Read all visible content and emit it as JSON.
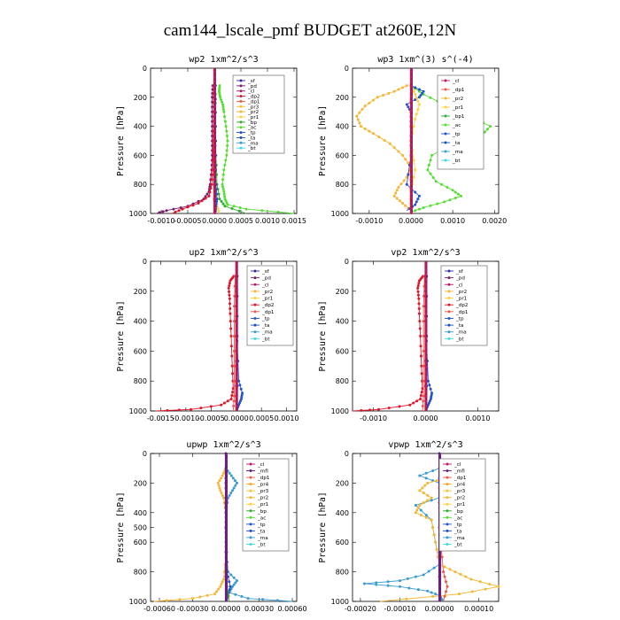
{
  "title": "cam144_lscale_pmf  BUDGET at260E,12N",
  "colors": {
    "sf": "#2e2ea8",
    "pd": "#7a1f6e",
    "cl": "#c2186b",
    "dp2": "#e0142a",
    "dp1": "#e85a4a",
    "pr3": "#f3c33c",
    "pr2": "#f4b733",
    "pr1": "#ffd23f",
    "bp": "#2eaa2e",
    "ac": "#55dd33",
    "tp": "#2255cc",
    "ta": "#1a4fb8",
    "ma": "#3a9bd0",
    "bt": "#40d8e8",
    "mfl": "#6a1b8a",
    "dp4": "#d0246a",
    "pr4": "#ffa020"
  },
  "chart_data": [
    {
      "type": "line",
      "title": "wp2   1xm^2/s^3",
      "ylabel": "Pressure [hPa]",
      "xlim": [
        -0.0012,
        0.00155
      ],
      "ylim": [
        1000,
        0
      ],
      "xticks": [
        -0.001,
        -0.0005,
        0.0,
        0.0005,
        0.001,
        0.0015
      ],
      "xtick_labels": [
        "-0.0010",
        "-0.0005",
        "0.0000",
        "0.0005",
        "0.0010",
        "0.0015"
      ],
      "yticks": [
        0,
        200,
        400,
        600,
        800,
        1000
      ],
      "legend": [
        "_sf",
        "_pd",
        "_cl",
        "_dp2",
        "_dp1",
        "_pr3",
        "_pr2",
        "_pr1",
        "_bp",
        "_ac",
        "_tp",
        "_ta",
        "_ma",
        "_bt"
      ],
      "series": [
        {
          "key": "pd",
          "y": [
            120,
            200,
            300,
            400,
            500,
            600,
            700,
            800,
            850,
            900,
            950,
            980,
            1000
          ],
          "x": [
            -3e-05,
            -4e-05,
            -4e-05,
            -4e-05,
            -4e-05,
            -4e-05,
            -5e-05,
            -8e-05,
            -0.0001,
            -0.0002,
            -0.0005,
            -0.0009,
            -0.0011
          ]
        },
        {
          "key": "dp2",
          "y": [
            120,
            300,
            500,
            700,
            800,
            880,
            930,
            970,
            1000
          ],
          "x": [
            0.0,
            -1e-05,
            -2e-05,
            -3e-05,
            -5e-05,
            -0.0001,
            -0.0003,
            -0.0006,
            -0.0008
          ]
        },
        {
          "key": "ac",
          "y": [
            120,
            160,
            200,
            250,
            300,
            400,
            500,
            600,
            700,
            800,
            850,
            900,
            940,
            970,
            1000
          ],
          "x": [
            0.0001,
            9e-05,
            0.00011,
            0.00016,
            0.00018,
            0.00022,
            0.00025,
            0.00023,
            0.00018,
            0.00015,
            0.00018,
            0.0002,
            0.00025,
            0.0006,
            0.0015
          ]
        },
        {
          "key": "bp",
          "y": [
            120,
            300,
            600,
            800,
            900,
            950,
            1000
          ],
          "x": [
            2e-05,
            2e-05,
            3e-05,
            5e-05,
            0.0001,
            0.0002,
            0.0006
          ]
        },
        {
          "key": "pr1",
          "y": [
            120,
            400,
            700,
            850,
            950,
            1000
          ],
          "x": [
            0.0,
            1e-05,
            1e-05,
            3e-05,
            5e-05,
            0.0001
          ]
        },
        {
          "key": "tp",
          "y": [
            120,
            400,
            800,
            900,
            950,
            1000
          ],
          "x": [
            0.0,
            1e-05,
            3e-05,
            5e-05,
            3e-05,
            2e-05
          ]
        },
        {
          "key": "bt",
          "y": [
            120,
            500,
            1000
          ],
          "x": [
            0.0,
            0.0,
            1e-05
          ]
        },
        {
          "key": "cl",
          "y": [
            120,
            400,
            700,
            1000
          ],
          "x": [
            0.0,
            0.0,
            0.0,
            0.0
          ]
        },
        {
          "key": "sf",
          "y": [
            120,
            400,
            700,
            1000
          ],
          "x": [
            2e-05,
            2e-05,
            2e-05,
            2e-05
          ]
        }
      ]
    },
    {
      "type": "line",
      "title": "wp3   1xm^(3) s^(-4)",
      "ylabel": "Pressure [hPa]",
      "xlim": [
        -0.0014,
        0.0021
      ],
      "ylim": [
        1000,
        0
      ],
      "xticks": [
        -0.001,
        0.0,
        0.001,
        0.002
      ],
      "xtick_labels": [
        "-0.0010",
        "0.0000",
        "0.0010",
        "0.0020"
      ],
      "yticks": [
        0,
        200,
        400,
        600,
        800,
        1000
      ],
      "legend": [
        "_cl",
        "_dp1",
        "_pr2",
        "_pr1",
        "_bp1",
        "_ac",
        "_tp",
        "_ta",
        "_ma",
        "_bt"
      ],
      "series": [
        {
          "key": "pr2",
          "y": [
            120,
            160,
            200,
            260,
            330,
            400,
            450,
            520,
            600,
            680,
            750,
            820,
            880,
            930,
            980
          ],
          "x": [
            -0.0001,
            -0.0004,
            -0.0008,
            -0.0011,
            -0.0013,
            -0.0012,
            -0.0009,
            -0.0005,
            -0.0002,
            0.0,
            -0.0001,
            -0.0003,
            -0.0004,
            -0.0002,
            0.0
          ]
        },
        {
          "key": "ac",
          "y": [
            120,
            180,
            250,
            330,
            400,
            460,
            520,
            600,
            700,
            780,
            840,
            880,
            920,
            960,
            990
          ],
          "x": [
            0.0,
            0.0003,
            0.0008,
            0.0014,
            0.0019,
            0.0017,
            0.001,
            0.0005,
            0.0004,
            0.0006,
            0.001,
            0.0012,
            0.0008,
            0.0003,
            0.0
          ]
        },
        {
          "key": "tp",
          "y": [
            120,
            160,
            200,
            250,
            300,
            400,
            600,
            800,
            880,
            940,
            980
          ],
          "x": [
            0.0,
            0.0003,
            0.0002,
            -0.0001,
            0.0,
            0.0,
            0.0,
            -0.0001,
            0.0002,
            0.0001,
            -0.0001
          ]
        },
        {
          "key": "pr1",
          "y": [
            120,
            180,
            250,
            350,
            500,
            700,
            850,
            950
          ],
          "x": [
            0.0,
            0.0001,
            0.0002,
            0.0001,
            0.0,
            0.0001,
            0.0,
            0.0
          ]
        },
        {
          "key": "dp1",
          "y": [
            120,
            400,
            700,
            900,
            1000
          ],
          "x": [
            0.0,
            0.0,
            0.0,
            0.0,
            0.0
          ]
        }
      ]
    },
    {
      "type": "line",
      "title": "up2   1xm^2/s^3",
      "ylabel": "Pressure [hPa]",
      "xlim": [
        -0.0017,
        0.0012
      ],
      "ylim": [
        1000,
        0
      ],
      "xticks": [
        -0.0015,
        -0.001,
        -0.0005,
        0.0,
        0.0005,
        0.001
      ],
      "xtick_labels": [
        "-0.0015",
        "-0.0010",
        "-0.0005",
        "0.0000",
        "0.0005",
        "0.0010"
      ],
      "yticks": [
        0,
        200,
        400,
        600,
        800,
        1000
      ],
      "legend": [
        "_sf",
        "_pd",
        "_cl",
        "_pr2",
        "_pr1",
        "_dp2",
        "_dp1",
        "_tp",
        "_ta",
        "_ma",
        "_bt"
      ],
      "series": [
        {
          "key": "dp2",
          "y": [
            100,
            130,
            180,
            250,
            350,
            500,
            700,
            850,
            920,
            960,
            990,
            1000
          ],
          "x": [
            -5e-05,
            -0.00012,
            -0.00015,
            -0.00013,
            -0.00012,
            -0.0001,
            -8e-05,
            -6e-05,
            -0.0001,
            -0.0003,
            -0.0009,
            -0.0016
          ]
        },
        {
          "key": "dp1",
          "y": [
            100,
            300,
            600,
            900,
            1000
          ],
          "x": [
            -2e-05,
            -4e-05,
            -4e-05,
            -4e-05,
            -6e-05
          ]
        },
        {
          "key": "tp",
          "y": [
            100,
            400,
            800,
            880,
            920,
            960,
            1000
          ],
          "x": [
            0.0,
            0.0,
            5e-05,
            0.00012,
            0.0001,
            5e-05,
            0.0
          ]
        },
        {
          "key": "pd",
          "y": [
            100,
            500,
            1000
          ],
          "x": [
            0.0,
            0.0,
            0.0
          ]
        },
        {
          "key": "sf",
          "y": [
            100,
            500,
            1000
          ],
          "x": [
            2e-05,
            2e-05,
            2e-05
          ]
        }
      ]
    },
    {
      "type": "line",
      "title": "vp2   1xm^2/s^3",
      "ylabel": "Pressure [hPa]",
      "xlim": [
        -0.0014,
        0.0014
      ],
      "ylim": [
        1000,
        0
      ],
      "xticks": [
        -0.001,
        0.0,
        0.001
      ],
      "xtick_labels": [
        "-0.0010",
        "0.0000",
        "0.0010"
      ],
      "yticks": [
        0,
        200,
        400,
        600,
        800,
        1000
      ],
      "legend": [
        "_sf",
        "_pd",
        "_cl",
        "_pr2",
        "_pr1",
        "_dp2",
        "_dp1",
        "_tp",
        "_ta",
        "_ma",
        "_bt"
      ],
      "series": [
        {
          "key": "dp2",
          "y": [
            100,
            130,
            180,
            250,
            350,
            500,
            700,
            850,
            920,
            960,
            990,
            1000
          ],
          "x": [
            -5e-05,
            -0.00012,
            -0.00015,
            -0.00013,
            -0.00012,
            -0.0001,
            -8e-05,
            -6e-05,
            -0.0001,
            -0.0003,
            -0.0009,
            -0.0014
          ]
        },
        {
          "key": "dp1",
          "y": [
            100,
            300,
            600,
            900,
            1000
          ],
          "x": [
            -2e-05,
            -4e-05,
            -4e-05,
            -4e-05,
            -6e-05
          ]
        },
        {
          "key": "tp",
          "y": [
            100,
            400,
            800,
            880,
            920,
            960,
            1000
          ],
          "x": [
            0.0,
            0.0,
            5e-05,
            0.00012,
            0.0001,
            5e-05,
            0.0
          ]
        },
        {
          "key": "pd",
          "y": [
            100,
            500,
            1000
          ],
          "x": [
            0.0,
            0.0,
            0.0
          ]
        },
        {
          "key": "sf",
          "y": [
            100,
            500,
            1000
          ],
          "x": [
            2e-05,
            2e-05,
            2e-05
          ]
        }
      ]
    },
    {
      "type": "line",
      "title": "upwp   1xm^2/s^3",
      "ylabel": "Pressure [hPa]",
      "xlim": [
        -0.00068,
        0.00064
      ],
      "ylim": [
        1000,
        0
      ],
      "xticks": [
        -0.0006,
        -0.0003,
        0.0,
        0.0003,
        0.0006
      ],
      "xtick_labels": [
        "-0.00060",
        "-0.00030",
        "0.00000",
        "0.00030",
        "0.00060"
      ],
      "yticks": [
        0,
        200,
        400,
        500,
        600,
        800,
        1000
      ],
      "legend": [
        "_cl",
        "_mfl",
        "_dp1",
        "_pr4",
        "_pr3",
        "_pr2",
        "_pr1",
        "_bp",
        "_ac",
        "_tp",
        "_ta",
        "_ma",
        "_bt"
      ],
      "series": [
        {
          "key": "pr2",
          "y": [
            100,
            150,
            200,
            250,
            300,
            400,
            500,
            700,
            850,
            900,
            950,
            980,
            1000
          ],
          "x": [
            0.0,
            -3e-05,
            -7e-05,
            -5e-05,
            -2e-05,
            0.0,
            0.0,
            0.0,
            -2e-05,
            -5e-05,
            -0.0001,
            -0.0003,
            -0.00065
          ]
        },
        {
          "key": "ma",
          "y": [
            100,
            150,
            200,
            250,
            300,
            400,
            600,
            800,
            860,
            900,
            940,
            980,
            1000
          ],
          "x": [
            0.0,
            5e-05,
            0.0001,
            6e-05,
            2e-05,
            0.0,
            0.0,
            2e-05,
            0.0001,
            6e-05,
            3e-05,
            0.0002,
            0.0006
          ]
        },
        {
          "key": "tp",
          "y": [
            100,
            400,
            800,
            900,
            960,
            1000
          ],
          "x": [
            0.0,
            0.0,
            1e-05,
            4e-05,
            2e-05,
            0.0
          ]
        },
        {
          "key": "bp",
          "y": [
            100,
            500,
            900,
            1000
          ],
          "x": [
            0.0,
            0.0,
            1e-05,
            3e-05
          ]
        },
        {
          "key": "mfl",
          "y": [
            0,
            500,
            1000
          ],
          "x": [
            0.0,
            0.0,
            0.0
          ]
        }
      ]
    },
    {
      "type": "line",
      "title": "vpwp   1xm^2/s^3",
      "ylabel": "Pressure [hPa]",
      "xlim": [
        -0.00022,
        0.00015
      ],
      "ylim": [
        1000,
        0
      ],
      "xticks": [
        -0.0002,
        -0.0001,
        0.0,
        0.0001
      ],
      "xtick_labels": [
        "-0.00020",
        "-0.00010",
        "0.00000",
        "0.00010"
      ],
      "yticks": [
        0,
        200,
        400,
        600,
        800,
        1000
      ],
      "legend": [
        "_cl",
        "_mfl",
        "_dp1",
        "_pr4",
        "_pr3",
        "_pr2",
        "_pr1",
        "_bp",
        "_ac",
        "_tp",
        "_ta",
        "_ma",
        "_bt"
      ],
      "series": [
        {
          "key": "ma",
          "y": [
            100,
            150,
            200,
            250,
            300,
            350,
            450,
            600,
            750,
            820,
            860,
            880,
            900,
            930,
            960,
            1000
          ],
          "x": [
            0.0,
            -5e-05,
            0.0,
            5e-05,
            0.0,
            -6e-05,
            -2e-05,
            -1e-05,
            0.0,
            -4e-05,
            -0.0001,
            -0.00019,
            -0.0001,
            -3e-05,
            0.0,
            1e-05
          ]
        },
        {
          "key": "pr2",
          "y": [
            100,
            150,
            200,
            250,
            300,
            350,
            400,
            450,
            600,
            750,
            800,
            850,
            900,
            950,
            1000
          ],
          "x": [
            0.0,
            4e-05,
            -3e-05,
            -5e-05,
            -2e-05,
            -5e-05,
            -6e-05,
            -2e-05,
            -1e-05,
            0.0,
            4e-05,
            8e-05,
            0.00015,
            5e-05,
            -0.00015
          ]
        },
        {
          "key": "dp1",
          "y": [
            100,
            500,
            800,
            900,
            1000
          ],
          "x": [
            0.0,
            0.0,
            1e-05,
            2e-05,
            1e-05
          ]
        },
        {
          "key": "mfl",
          "y": [
            0,
            500,
            1000
          ],
          "x": [
            0.0,
            0.0,
            0.0
          ]
        }
      ]
    }
  ]
}
